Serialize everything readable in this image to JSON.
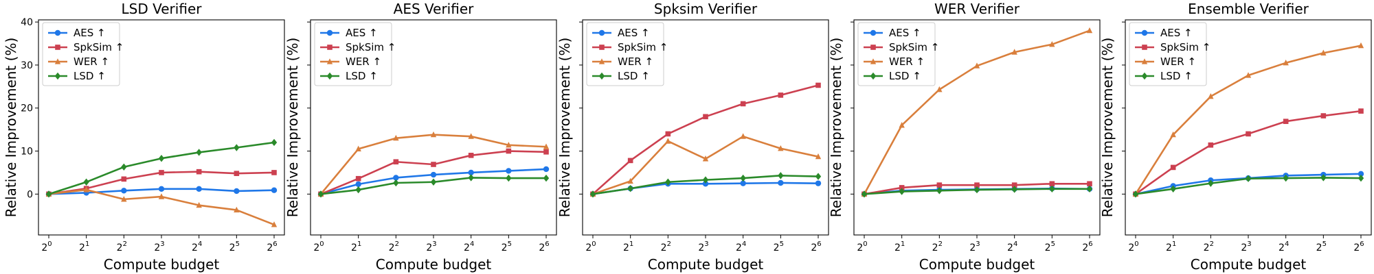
{
  "chart_data": [
    {
      "type": "line",
      "title": "LSD Verifier",
      "xlabel": "Compute budget",
      "ylabel": "Relative Improvement (%)",
      "x": [
        0,
        1,
        2,
        3,
        4,
        5,
        6
      ],
      "xtick_base": "2",
      "xtick_exponents": [
        "0",
        "1",
        "2",
        "3",
        "4",
        "5",
        "6"
      ],
      "ylim": [
        -9.5,
        40.5
      ],
      "yticks": [
        0,
        10,
        20,
        30,
        40
      ],
      "show_ytick_labels": true,
      "legend_position": "upper-left",
      "series": [
        {
          "name": "AES ↑",
          "color": "#1f77e8",
          "marker": "circle",
          "values": [
            0,
            0.3,
            0.8,
            1.2,
            1.2,
            0.7,
            0.9
          ]
        },
        {
          "name": "SpkSim ↑",
          "color": "#cc4050",
          "marker": "square",
          "values": [
            0,
            1.3,
            3.5,
            5.0,
            5.2,
            4.8,
            5.0
          ]
        },
        {
          "name": "WER ↑",
          "color": "#d97f3c",
          "marker": "triangle",
          "values": [
            0,
            1.0,
            -1.2,
            -0.6,
            -2.6,
            -3.7,
            -7.1
          ]
        },
        {
          "name": "LSD ↑",
          "color": "#2a8a2a",
          "marker": "diamond",
          "values": [
            0,
            2.8,
            6.3,
            8.3,
            9.7,
            10.8,
            12.0
          ]
        }
      ]
    },
    {
      "type": "line",
      "title": "AES Verifier",
      "xlabel": "Compute budget",
      "ylabel": "Relative Improvement (%)",
      "x": [
        0,
        1,
        2,
        3,
        4,
        5,
        6
      ],
      "xtick_base": "2",
      "xtick_exponents": [
        "0",
        "1",
        "2",
        "3",
        "4",
        "5",
        "6"
      ],
      "ylim": [
        -9.5,
        40.5
      ],
      "yticks": [
        0,
        10,
        20,
        30,
        40
      ],
      "show_ytick_labels": false,
      "legend_position": "upper-left",
      "series": [
        {
          "name": "AES ↑",
          "color": "#1f77e8",
          "marker": "circle",
          "values": [
            0,
            2.3,
            3.8,
            4.5,
            5.0,
            5.4,
            5.8
          ]
        },
        {
          "name": "SpkSim ↑",
          "color": "#cc4050",
          "marker": "square",
          "values": [
            0,
            3.6,
            7.5,
            6.9,
            9.0,
            10.0,
            9.8
          ]
        },
        {
          "name": "WER ↑",
          "color": "#d97f3c",
          "marker": "triangle",
          "values": [
            0,
            10.5,
            13.0,
            13.8,
            13.4,
            11.4,
            11.0
          ]
        },
        {
          "name": "LSD ↑",
          "color": "#2a8a2a",
          "marker": "diamond",
          "values": [
            0,
            1.0,
            2.6,
            2.8,
            3.8,
            3.7,
            3.7
          ]
        }
      ]
    },
    {
      "type": "line",
      "title": "Spksim Verifier",
      "xlabel": "Compute budget",
      "ylabel": "Relative Improvement (%)",
      "x": [
        0,
        1,
        2,
        3,
        4,
        5,
        6
      ],
      "xtick_base": "2",
      "xtick_exponents": [
        "0",
        "1",
        "2",
        "3",
        "4",
        "5",
        "6"
      ],
      "ylim": [
        -9.5,
        40.5
      ],
      "yticks": [
        0,
        10,
        20,
        30,
        40
      ],
      "show_ytick_labels": false,
      "legend_position": "upper-left",
      "series": [
        {
          "name": "AES ↑",
          "color": "#1f77e8",
          "marker": "circle",
          "values": [
            0,
            1.3,
            2.4,
            2.4,
            2.5,
            2.6,
            2.5
          ]
        },
        {
          "name": "SpkSim ↑",
          "color": "#cc4050",
          "marker": "square",
          "values": [
            0,
            7.8,
            14.0,
            18.0,
            21.0,
            23.0,
            25.3
          ]
        },
        {
          "name": "WER ↑",
          "color": "#d97f3c",
          "marker": "triangle",
          "values": [
            0,
            3.0,
            12.3,
            8.2,
            13.4,
            10.6,
            8.7
          ]
        },
        {
          "name": "LSD ↑",
          "color": "#2a8a2a",
          "marker": "diamond",
          "values": [
            0,
            1.3,
            2.8,
            3.3,
            3.7,
            4.3,
            4.1
          ]
        }
      ]
    },
    {
      "type": "line",
      "title": "WER Verifier",
      "xlabel": "Compute budget",
      "ylabel": "Relative Improvement (%)",
      "x": [
        0,
        1,
        2,
        3,
        4,
        5,
        6
      ],
      "xtick_base": "2",
      "xtick_exponents": [
        "0",
        "1",
        "2",
        "3",
        "4",
        "5",
        "6"
      ],
      "ylim": [
        -9.5,
        40.5
      ],
      "yticks": [
        0,
        10,
        20,
        30,
        40
      ],
      "show_ytick_labels": false,
      "legend_position": "upper-left",
      "series": [
        {
          "name": "AES ↑",
          "color": "#1f77e8",
          "marker": "circle",
          "values": [
            0,
            0.8,
            1.0,
            1.1,
            1.2,
            1.3,
            1.2
          ]
        },
        {
          "name": "SpkSim ↑",
          "color": "#cc4050",
          "marker": "square",
          "values": [
            0,
            1.5,
            2.1,
            2.1,
            2.1,
            2.4,
            2.4
          ]
        },
        {
          "name": "WER ↑",
          "color": "#d97f3c",
          "marker": "triangle",
          "values": [
            0,
            16.0,
            24.3,
            29.8,
            33.0,
            34.8,
            38.0
          ]
        },
        {
          "name": "LSD ↑",
          "color": "#2a8a2a",
          "marker": "diamond",
          "values": [
            0,
            0.6,
            0.8,
            1.0,
            1.1,
            1.2,
            1.2
          ]
        }
      ]
    },
    {
      "type": "line",
      "title": "Ensemble Verifier",
      "xlabel": "Compute budget",
      "ylabel": "Relative Improvement (%)",
      "x": [
        0,
        1,
        2,
        3,
        4,
        5,
        6
      ],
      "xtick_base": "2",
      "xtick_exponents": [
        "0",
        "1",
        "2",
        "3",
        "4",
        "5",
        "6"
      ],
      "ylim": [
        -9.5,
        40.5
      ],
      "yticks": [
        0,
        10,
        20,
        30,
        40
      ],
      "show_ytick_labels": false,
      "legend_position": "upper-left",
      "series": [
        {
          "name": "AES ↑",
          "color": "#1f77e8",
          "marker": "circle",
          "values": [
            0,
            1.9,
            3.2,
            3.7,
            4.3,
            4.5,
            4.7
          ]
        },
        {
          "name": "SpkSim ↑",
          "color": "#cc4050",
          "marker": "square",
          "values": [
            0,
            6.2,
            11.4,
            14.0,
            16.9,
            18.2,
            19.3
          ]
        },
        {
          "name": "WER ↑",
          "color": "#d97f3c",
          "marker": "triangle",
          "values": [
            0,
            13.8,
            22.7,
            27.6,
            30.5,
            32.8,
            34.5
          ]
        },
        {
          "name": "LSD ↑",
          "color": "#2a8a2a",
          "marker": "diamond",
          "values": [
            0,
            1.2,
            2.5,
            3.6,
            3.7,
            3.8,
            3.7
          ]
        }
      ]
    }
  ]
}
